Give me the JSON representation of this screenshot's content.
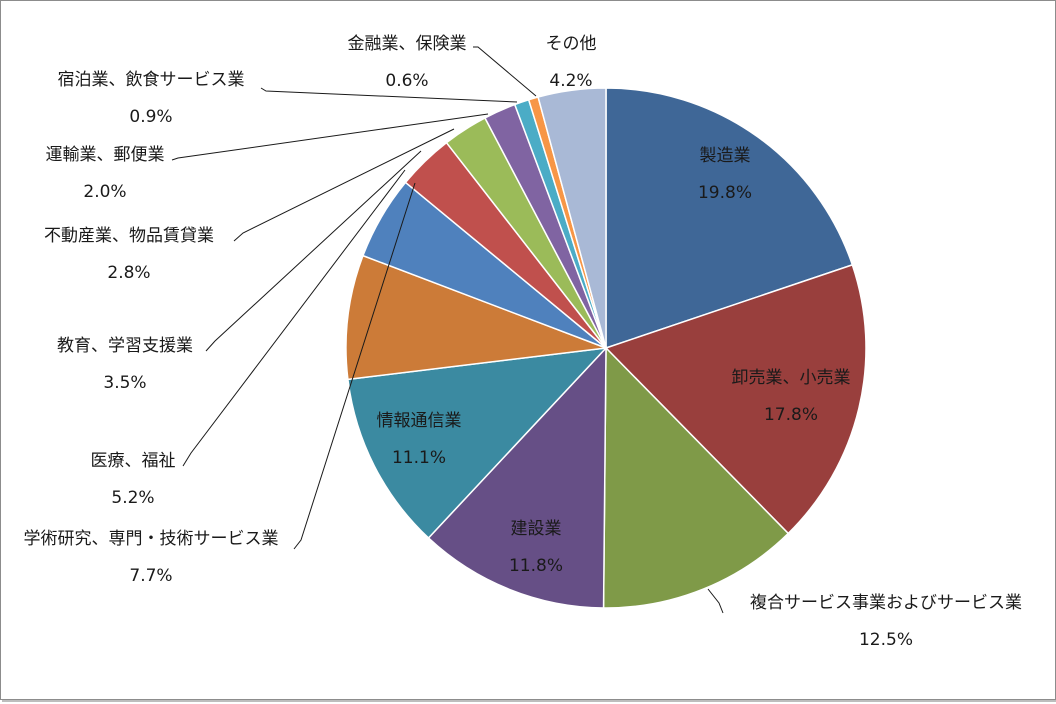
{
  "chart_data": {
    "type": "pie",
    "title": "",
    "start": "12 o'clock, clockwise",
    "legend": "none",
    "slices": [
      {
        "name": "製造業",
        "value": 19.8,
        "label": "19.8%",
        "color": "#3f6797",
        "label_position": "inside"
      },
      {
        "name": "卸売業、小売業",
        "value": 17.8,
        "label": "17.8%",
        "color": "#993f3d",
        "label_position": "inside"
      },
      {
        "name": "複合サービス事業およびサービス業",
        "value": 12.5,
        "label": "12.5%",
        "color": "#7f9a48",
        "label_position": "outside"
      },
      {
        "name": "建設業",
        "value": 11.8,
        "label": "11.8%",
        "color": "#664f86",
        "label_position": "inside"
      },
      {
        "name": "情報通信業",
        "value": 11.1,
        "label": "11.1%",
        "color": "#3b8aa1",
        "label_position": "inside"
      },
      {
        "name": "学術研究、専門・技術サービス業",
        "value": 7.7,
        "label": "7.7%",
        "color": "#cc7b38",
        "label_position": "outside"
      },
      {
        "name": "医療、福祉",
        "value": 5.2,
        "label": "5.2%",
        "color": "#4f81bd",
        "label_position": "outside"
      },
      {
        "name": "教育、学習支援業",
        "value": 3.5,
        "label": "3.5%",
        "color": "#c0504d",
        "label_position": "outside"
      },
      {
        "name": "不動産業、物品賃貸業",
        "value": 2.8,
        "label": "2.8%",
        "color": "#9bbb59",
        "label_position": "outside"
      },
      {
        "name": "運輸業、郵便業",
        "value": 2.0,
        "label": "2.0%",
        "color": "#8064a2",
        "label_position": "outside"
      },
      {
        "name": "宿泊業、飲食サービス業",
        "value": 0.9,
        "label": "0.9%",
        "color": "#4bacc6",
        "label_position": "outside"
      },
      {
        "name": "金融業、保険業",
        "value": 0.6,
        "label": "0.6%",
        "color": "#f79646",
        "label_position": "outside"
      },
      {
        "name": "その他",
        "value": 4.2,
        "label": "4.2%",
        "color": "#a9b9d6",
        "label_position": "outside"
      }
    ]
  }
}
